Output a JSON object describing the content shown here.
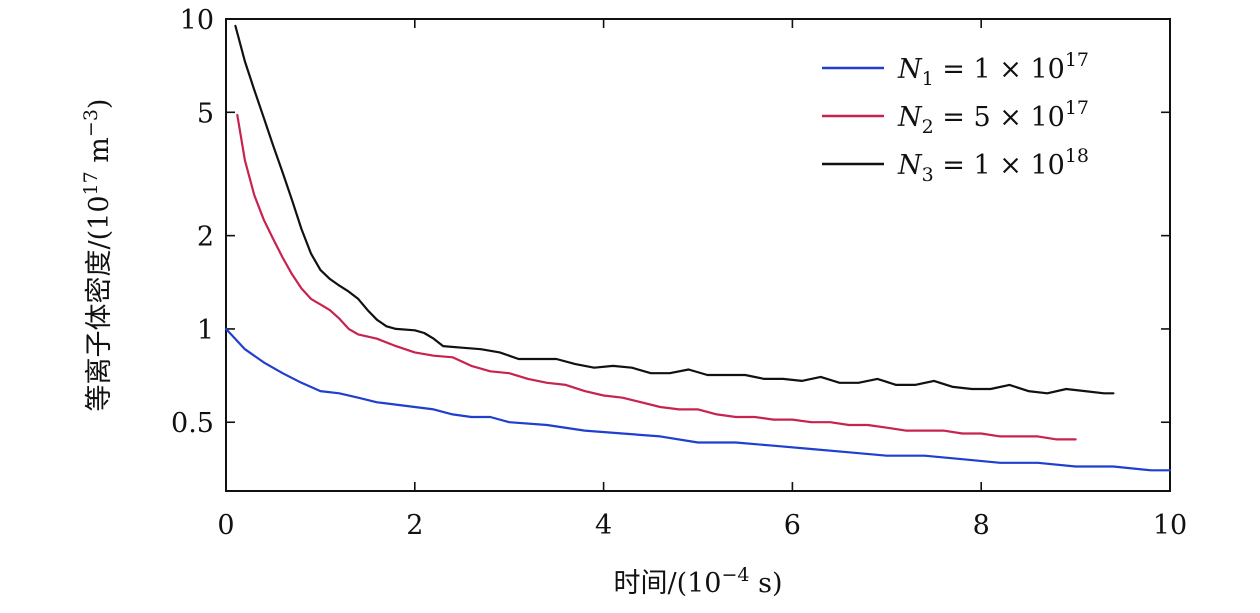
{
  "chart_data": {
    "type": "line",
    "xlabel_parts": [
      "时间/(10",
      "−4",
      " s)"
    ],
    "ylabel_parts": [
      "等离子体密度/(10",
      "17",
      " m",
      "−3",
      ")"
    ],
    "xlim": [
      0,
      10
    ],
    "ylim": [
      0.3,
      10
    ],
    "y_scale": "log",
    "x_ticks": [
      0,
      2,
      4,
      6,
      8,
      10
    ],
    "x_tick_labels": [
      "0",
      "2",
      "4",
      "6",
      "8",
      "10"
    ],
    "y_ticks": [
      0.5,
      1,
      2,
      5,
      10
    ],
    "y_tick_labels": [
      "0.5",
      "1",
      "2",
      "5",
      "10"
    ],
    "legend_position": "top-right",
    "series": [
      {
        "name": "N1 = 1×10^17",
        "legend": {
          "sym": "N",
          "sub": "1",
          "eq": " = 1 × 10",
          "sup": "17"
        },
        "color": "#1f3fce",
        "x": [
          0,
          0.2,
          0.4,
          0.6,
          0.8,
          1.0,
          1.2,
          1.4,
          1.6,
          1.8,
          2.0,
          2.2,
          2.4,
          2.6,
          2.8,
          3.0,
          3.4,
          3.8,
          4.2,
          4.6,
          5.0,
          5.4,
          5.8,
          6.2,
          6.6,
          7.0,
          7.4,
          7.8,
          8.2,
          8.6,
          9.0,
          9.4,
          9.8,
          10.0
        ],
        "y": [
          1.0,
          0.86,
          0.78,
          0.72,
          0.67,
          0.63,
          0.62,
          0.6,
          0.58,
          0.57,
          0.56,
          0.55,
          0.53,
          0.52,
          0.52,
          0.5,
          0.49,
          0.47,
          0.46,
          0.45,
          0.43,
          0.43,
          0.42,
          0.41,
          0.4,
          0.39,
          0.39,
          0.38,
          0.37,
          0.37,
          0.36,
          0.36,
          0.35,
          0.35
        ]
      },
      {
        "name": "N2 = 5×10^17",
        "legend": {
          "sym": "N",
          "sub": "2",
          "eq": " = 5 × 10",
          "sup": "17"
        },
        "color": "#c8234f",
        "x": [
          0.12,
          0.2,
          0.3,
          0.4,
          0.5,
          0.6,
          0.7,
          0.8,
          0.9,
          1.0,
          1.1,
          1.2,
          1.3,
          1.4,
          1.6,
          1.8,
          2.0,
          2.2,
          2.4,
          2.6,
          2.8,
          3.0,
          3.2,
          3.4,
          3.6,
          3.8,
          4.0,
          4.2,
          4.4,
          4.6,
          4.8,
          5.0,
          5.2,
          5.4,
          5.6,
          5.8,
          6.0,
          6.2,
          6.4,
          6.6,
          6.8,
          7.0,
          7.2,
          7.4,
          7.6,
          7.8,
          8.0,
          8.2,
          8.4,
          8.6,
          8.8,
          9.0
        ],
        "y": [
          4.9,
          3.5,
          2.7,
          2.25,
          1.95,
          1.7,
          1.5,
          1.35,
          1.25,
          1.2,
          1.15,
          1.08,
          1.0,
          0.96,
          0.93,
          0.88,
          0.84,
          0.82,
          0.81,
          0.76,
          0.73,
          0.72,
          0.69,
          0.67,
          0.66,
          0.63,
          0.61,
          0.6,
          0.58,
          0.56,
          0.55,
          0.55,
          0.53,
          0.52,
          0.52,
          0.51,
          0.51,
          0.5,
          0.5,
          0.49,
          0.49,
          0.48,
          0.47,
          0.47,
          0.47,
          0.46,
          0.46,
          0.45,
          0.45,
          0.45,
          0.44,
          0.44
        ]
      },
      {
        "name": "N3 = 1×10^18",
        "legend": {
          "sym": "N",
          "sub": "3",
          "eq": " = 1 × 10",
          "sup": "18"
        },
        "color": "#111111",
        "x": [
          0.1,
          0.2,
          0.3,
          0.4,
          0.5,
          0.6,
          0.7,
          0.8,
          0.9,
          1.0,
          1.1,
          1.2,
          1.3,
          1.4,
          1.5,
          1.6,
          1.7,
          1.8,
          2.0,
          2.1,
          2.2,
          2.3,
          2.5,
          2.7,
          2.9,
          3.1,
          3.3,
          3.5,
          3.7,
          3.9,
          4.1,
          4.3,
          4.5,
          4.7,
          4.9,
          5.1,
          5.3,
          5.5,
          5.7,
          5.9,
          6.1,
          6.3,
          6.5,
          6.7,
          6.9,
          7.1,
          7.3,
          7.5,
          7.7,
          7.9,
          8.1,
          8.3,
          8.5,
          8.7,
          8.9,
          9.1,
          9.3,
          9.4
        ],
        "y": [
          9.5,
          7.3,
          5.9,
          4.8,
          3.9,
          3.2,
          2.6,
          2.1,
          1.75,
          1.55,
          1.45,
          1.38,
          1.32,
          1.25,
          1.15,
          1.07,
          1.02,
          1.0,
          0.99,
          0.97,
          0.93,
          0.88,
          0.87,
          0.86,
          0.84,
          0.8,
          0.8,
          0.8,
          0.77,
          0.75,
          0.76,
          0.75,
          0.72,
          0.72,
          0.74,
          0.71,
          0.71,
          0.71,
          0.69,
          0.69,
          0.68,
          0.7,
          0.67,
          0.67,
          0.69,
          0.66,
          0.66,
          0.68,
          0.65,
          0.64,
          0.64,
          0.66,
          0.63,
          0.62,
          0.64,
          0.63,
          0.62,
          0.62
        ]
      }
    ]
  }
}
